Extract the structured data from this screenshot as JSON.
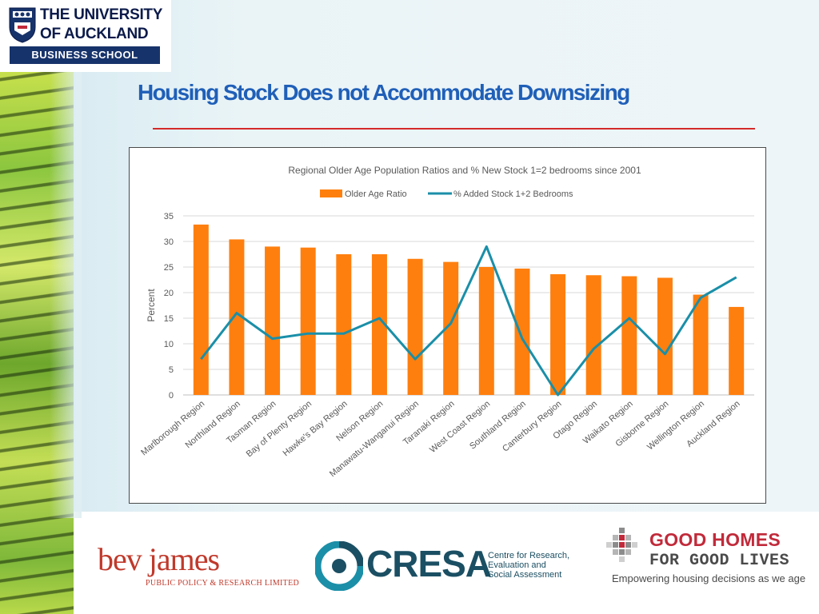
{
  "logo": {
    "line1": "THE UNIVERSITY",
    "line2": "OF AUCKLAND",
    "bar": "BUSINESS SCHOOL"
  },
  "slide": {
    "title": "Housing Stock Does not Accommodate Downsizing"
  },
  "chart_data": {
    "type": "bar+line",
    "title": "Regional Older Age Population Ratios and % New Stock 1=2 bedrooms since 2001",
    "ylabel": "Percent",
    "xlabel": "",
    "ylim": [
      0,
      35
    ],
    "yticks": [
      0,
      5,
      10,
      15,
      20,
      25,
      30,
      35
    ],
    "grid": true,
    "legend_position": "top",
    "categories": [
      "Marlborough Region",
      "Northland Region",
      "Tasman Region",
      "Bay of Plenty Region",
      "Hawke's Bay Region",
      "Nelson Region",
      "Manawatu-Wanganui Region",
      "Taranaki Region",
      "West Coast Region",
      "Southland Region",
      "Canterbury Region",
      "Otago Region",
      "Waikato Region",
      "Gisborne Region",
      "Wellington Region",
      "Auckland Region"
    ],
    "series": [
      {
        "name": "Older Age Ratio",
        "kind": "bar",
        "color": "#ff7f0e",
        "values": [
          33.3,
          30.4,
          29.0,
          28.8,
          27.5,
          27.5,
          26.6,
          26.0,
          25.0,
          24.7,
          23.6,
          23.4,
          23.2,
          22.9,
          19.6,
          17.2
        ]
      },
      {
        "name": "% Added Stock 1+2 Bedrooms",
        "kind": "line",
        "color": "#1a8fa8",
        "values": [
          7,
          16,
          11,
          12,
          12,
          15,
          7,
          14,
          29,
          11,
          0,
          9,
          15,
          8,
          19,
          23
        ]
      }
    ]
  },
  "footer": {
    "bev_name": "bev james",
    "bev_sub": "PUBLIC POLICY & RESEARCH LIMITED",
    "cresa_name": "CRESA",
    "cresa_line1": "Centre for Research,",
    "cresa_line2": "Evaluation and",
    "cresa_line3": "Social Assessment",
    "gh_line1": "GOOD HOMES",
    "gh_line2": "FOR GOOD LIVES",
    "gh_tagline": "Empowering housing decisions as we age"
  }
}
